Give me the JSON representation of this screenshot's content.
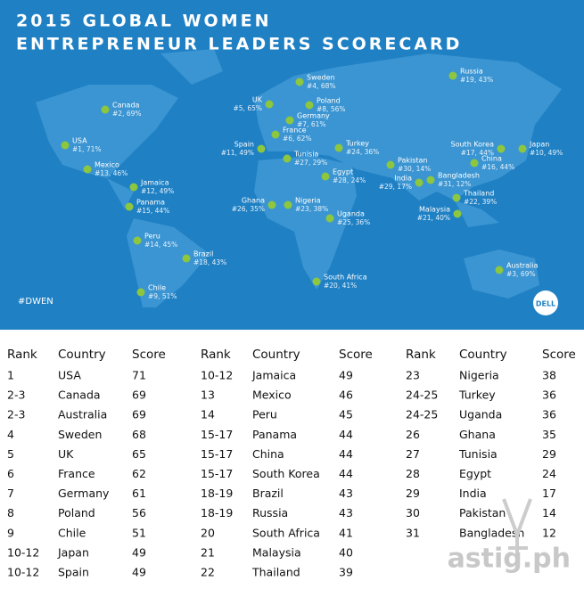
{
  "header": {
    "title_lines": [
      "2015 GLOBAL WOMEN",
      "ENTREPRENEUR LEADERS SCORECARD"
    ]
  },
  "map": {
    "pins": [
      {
        "label": "USA",
        "detail": "#1, 71%"
      },
      {
        "label": "Canada",
        "detail": "#2, 69%"
      },
      {
        "label": "Mexico",
        "detail": "#13, 46%"
      },
      {
        "label": "Jamaica",
        "detail": "#12, 49%"
      },
      {
        "label": "Panama",
        "detail": "#15, 44%"
      },
      {
        "label": "Peru",
        "detail": "#14, 45%"
      },
      {
        "label": "Brazil",
        "detail": "#18, 43%"
      },
      {
        "label": "Chile",
        "detail": "#9, 51%"
      },
      {
        "label": "Sweden",
        "detail": "#4, 68%"
      },
      {
        "label": "UK",
        "detail": "#5, 65%"
      },
      {
        "label": "Poland",
        "detail": "#8, 56%"
      },
      {
        "label": "Germany",
        "detail": "#7, 61%"
      },
      {
        "label": "France",
        "detail": "#6, 62%"
      },
      {
        "label": "Spain",
        "detail": "#11, 49%"
      },
      {
        "label": "Tunisia",
        "detail": "#27, 29%"
      },
      {
        "label": "Turkey",
        "detail": "#24, 36%"
      },
      {
        "label": "Egypt",
        "detail": "#28, 24%"
      },
      {
        "label": "Nigeria",
        "detail": "#23, 38%"
      },
      {
        "label": "Ghana",
        "detail": "#26, 35%"
      },
      {
        "label": "Uganda",
        "detail": "#25, 36%"
      },
      {
        "label": "South Africa",
        "detail": "#20, 41%"
      },
      {
        "label": "Pakistan",
        "detail": "#30, 14%"
      },
      {
        "label": "India",
        "detail": "#29, 17%"
      },
      {
        "label": "Bangladesh",
        "detail": "#31, 12%"
      },
      {
        "label": "Russia",
        "detail": "#19, 43%"
      },
      {
        "label": "South Korea",
        "detail": "#17, 44%"
      },
      {
        "label": "Japan",
        "detail": "#10, 49%"
      },
      {
        "label": "China",
        "detail": "#16, 44%"
      },
      {
        "label": "Thailand",
        "detail": "#22, 39%"
      },
      {
        "label": "Malaysia",
        "detail": "#21, 40%"
      },
      {
        "label": "Australia",
        "detail": "#3, 69%"
      }
    ],
    "hashtag": "#DWEN",
    "logo": "DELL"
  },
  "table": {
    "columns": [
      "Rank",
      "Country",
      "Score"
    ],
    "rows": [
      [
        "1",
        "USA",
        71
      ],
      [
        "2-3",
        "Canada",
        69
      ],
      [
        "2-3",
        "Australia",
        69
      ],
      [
        "4",
        "Sweden",
        68
      ],
      [
        "5",
        "UK",
        65
      ],
      [
        "6",
        "France",
        62
      ],
      [
        "7",
        "Germany",
        61
      ],
      [
        "8",
        "Poland",
        56
      ],
      [
        "9",
        "Chile",
        51
      ],
      [
        "10-12",
        "Japan",
        49
      ],
      [
        "10-12",
        "Spain",
        49
      ],
      [
        "10-12",
        "Jamaica",
        49
      ],
      [
        "13",
        "Mexico",
        46
      ],
      [
        "14",
        "Peru",
        45
      ],
      [
        "15-17",
        "Panama",
        44
      ],
      [
        "15-17",
        "China",
        44
      ],
      [
        "15-17",
        "South Korea",
        44
      ],
      [
        "18-19",
        "Brazil",
        43
      ],
      [
        "18-19",
        "Russia",
        43
      ],
      [
        "20",
        "South Africa",
        41
      ],
      [
        "21",
        "Malaysia",
        40
      ],
      [
        "22",
        "Thailand",
        39
      ],
      [
        "23",
        "Nigeria",
        38
      ],
      [
        "24-25",
        "Turkey",
        36
      ],
      [
        "24-25",
        "Uganda",
        36
      ],
      [
        "26",
        "Ghana",
        35
      ],
      [
        "27",
        "Tunisia",
        29
      ],
      [
        "28",
        "Egypt",
        24
      ],
      [
        "29",
        "India",
        17
      ],
      [
        "30",
        "Pakistan",
        14
      ],
      [
        "31",
        "Bangladesh",
        12
      ]
    ]
  },
  "watermark": "astig.ph"
}
